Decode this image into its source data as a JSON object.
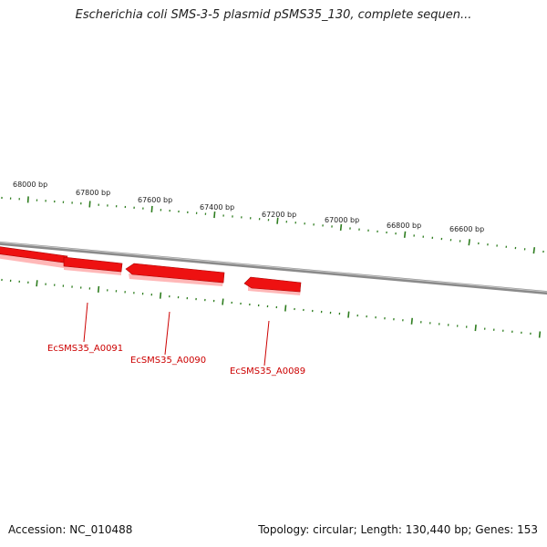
{
  "title": "Escherichia coli SMS-3-5 plasmid pSMS35_130, complete sequen...",
  "footer": {
    "accession_label": "Accession:",
    "accession": "NC_010488",
    "topology_label": "Topology:",
    "topology": "circular",
    "length_label": "Length:",
    "length": "130,440 bp",
    "genes_label": "Genes:",
    "genes": "153"
  },
  "colors": {
    "backbone": "#8a8a8a",
    "gene": "#ee1111",
    "gene_label": "#cc0000",
    "ticks": "#2e7d1f"
  },
  "scale": {
    "unit": "bp",
    "major_labels": [
      "68000 bp",
      "67800 bp",
      "67600 bp",
      "67400 bp",
      "67200 bp",
      "67000 bp",
      "66800 bp",
      "66600 bp"
    ]
  },
  "genes": [
    {
      "name": "EcSMS35_A0091",
      "strand": "forward"
    },
    {
      "name": "EcSMS35_A0090",
      "strand": "reverse"
    },
    {
      "name": "EcSMS35_A0089",
      "strand": "reverse"
    }
  ]
}
